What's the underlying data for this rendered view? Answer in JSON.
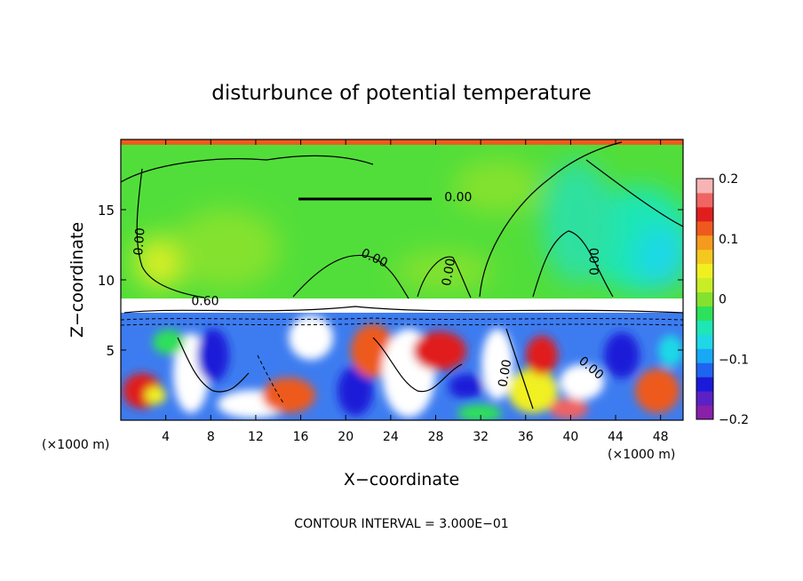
{
  "chart_data": {
    "type": "heatmap",
    "title": "disturbunce of potential temperature",
    "xlabel": "X−coordinate",
    "ylabel": "Z−coordinate",
    "x_unit_left": "(×1000 m)",
    "x_unit_right": "(×1000 m)",
    "xlim": [
      0,
      50
    ],
    "ylim": [
      0,
      20
    ],
    "x_ticks": [
      4,
      8,
      12,
      16,
      20,
      24,
      28,
      32,
      36,
      40,
      44,
      48
    ],
    "y_ticks": [
      5,
      10,
      15
    ],
    "colorbar": {
      "range": [
        -0.2,
        0.2
      ],
      "tick_values": [
        0.2,
        0.1,
        0,
        -0.1,
        -0.2
      ],
      "tick_labels": [
        "0.2",
        "0.1",
        "0",
        "−0.1",
        "−0.2"
      ],
      "colors": [
        "#8a1faa",
        "#5a22c4",
        "#1a1ad8",
        "#1f64f0",
        "#19a8f5",
        "#1fd8e6",
        "#1ee6b4",
        "#2ee05a",
        "#84e22e",
        "#c8ee28",
        "#f0f020",
        "#f5c820",
        "#f59a1e",
        "#ee5a1e",
        "#e01e1e",
        "#f06464",
        "#f8b4b4"
      ]
    },
    "contour_labels": [
      {
        "text": "0.00",
        "x": 30,
        "z": 15.6,
        "rotate": 0
      },
      {
        "text": "0.00",
        "x": 2,
        "z": 12.7,
        "rotate": -85
      },
      {
        "text": "0.00",
        "x": 22.4,
        "z": 11.3,
        "rotate": 25
      },
      {
        "text": "0.00",
        "x": 29.5,
        "z": 10.5,
        "rotate": -80
      },
      {
        "text": "0.00",
        "x": 42.5,
        "z": 11.3,
        "rotate": -90
      },
      {
        "text": "0.60",
        "x": 7.5,
        "z": 8.2,
        "rotate": 0
      },
      {
        "text": "0.00",
        "x": 34.5,
        "z": 3.3,
        "rotate": -80
      },
      {
        "text": "0.00",
        "x": 41.6,
        "z": 3.5,
        "rotate": 40
      }
    ],
    "footer": "CONTOUR INTERVAL = 3.000E−01"
  }
}
